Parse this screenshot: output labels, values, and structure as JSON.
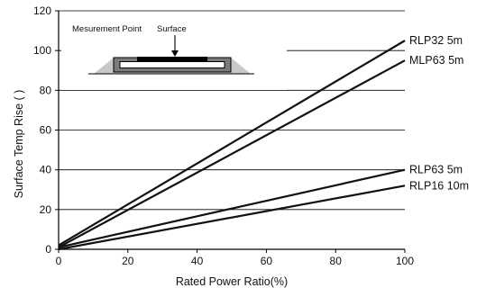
{
  "chart_data": {
    "type": "line",
    "xlabel": "Rated Power Ratio(%)",
    "ylabel": "Surface Temp Rise (   )",
    "xlim": [
      0,
      100
    ],
    "ylim": [
      0,
      120
    ],
    "xticks": [
      0,
      20,
      40,
      60,
      80,
      100
    ],
    "yticks": [
      0,
      20,
      40,
      60,
      80,
      100,
      120
    ],
    "grid": "horizontal",
    "series": [
      {
        "name": "RLP32 5m",
        "x": [
          0,
          100
        ],
        "y": [
          2,
          105
        ]
      },
      {
        "name": "MLP63 5m",
        "x": [
          0,
          100
        ],
        "y": [
          1,
          95
        ]
      },
      {
        "name": "RLP63 5m",
        "x": [
          0,
          100
        ],
        "y": [
          1,
          40
        ]
      },
      {
        "name": "RLP16 10m",
        "x": [
          0,
          100
        ],
        "y": [
          0,
          32
        ]
      }
    ],
    "inset": {
      "measurement_label": "Mesurement Point",
      "surface_label": "Surface"
    }
  }
}
